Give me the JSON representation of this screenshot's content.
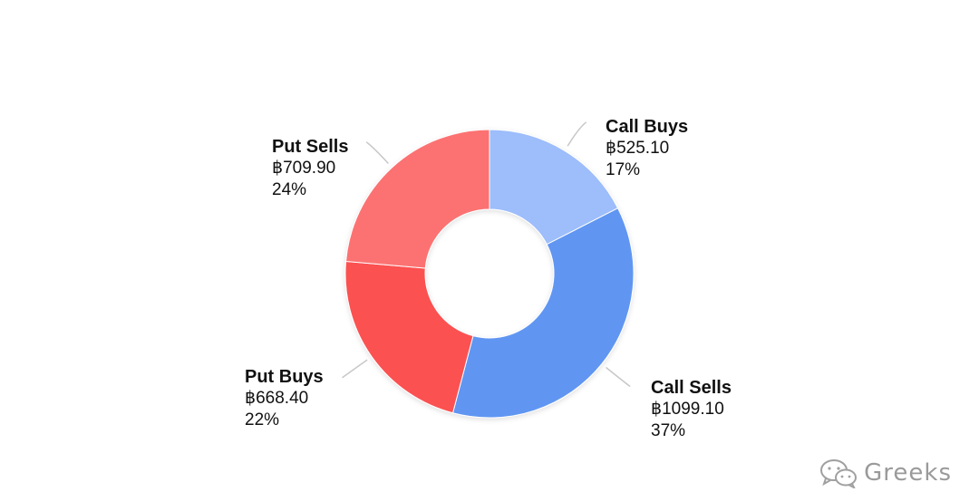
{
  "chart_data": {
    "type": "pie",
    "variant": "donut",
    "title": "",
    "currency_symbol": "฿",
    "series": [
      {
        "name": "Call Buys",
        "value": 525.1,
        "value_label": "฿525.10",
        "percent_label": "17%",
        "color": "#9dbdfb"
      },
      {
        "name": "Call Sells",
        "value": 1099.1,
        "value_label": "฿1099.10",
        "percent_label": "37%",
        "color": "#6196f2"
      },
      {
        "name": "Put Buys",
        "value": 668.4,
        "value_label": "฿668.40",
        "percent_label": "22%",
        "color": "#fb5151"
      },
      {
        "name": "Put Sells",
        "value": 709.9,
        "value_label": "฿709.90",
        "percent_label": "24%",
        "color": "#fc7272"
      }
    ],
    "start_angle": "top",
    "direction": "clockwise"
  },
  "watermark": {
    "text": "Greeks",
    "icon": "wechat-icon"
  }
}
